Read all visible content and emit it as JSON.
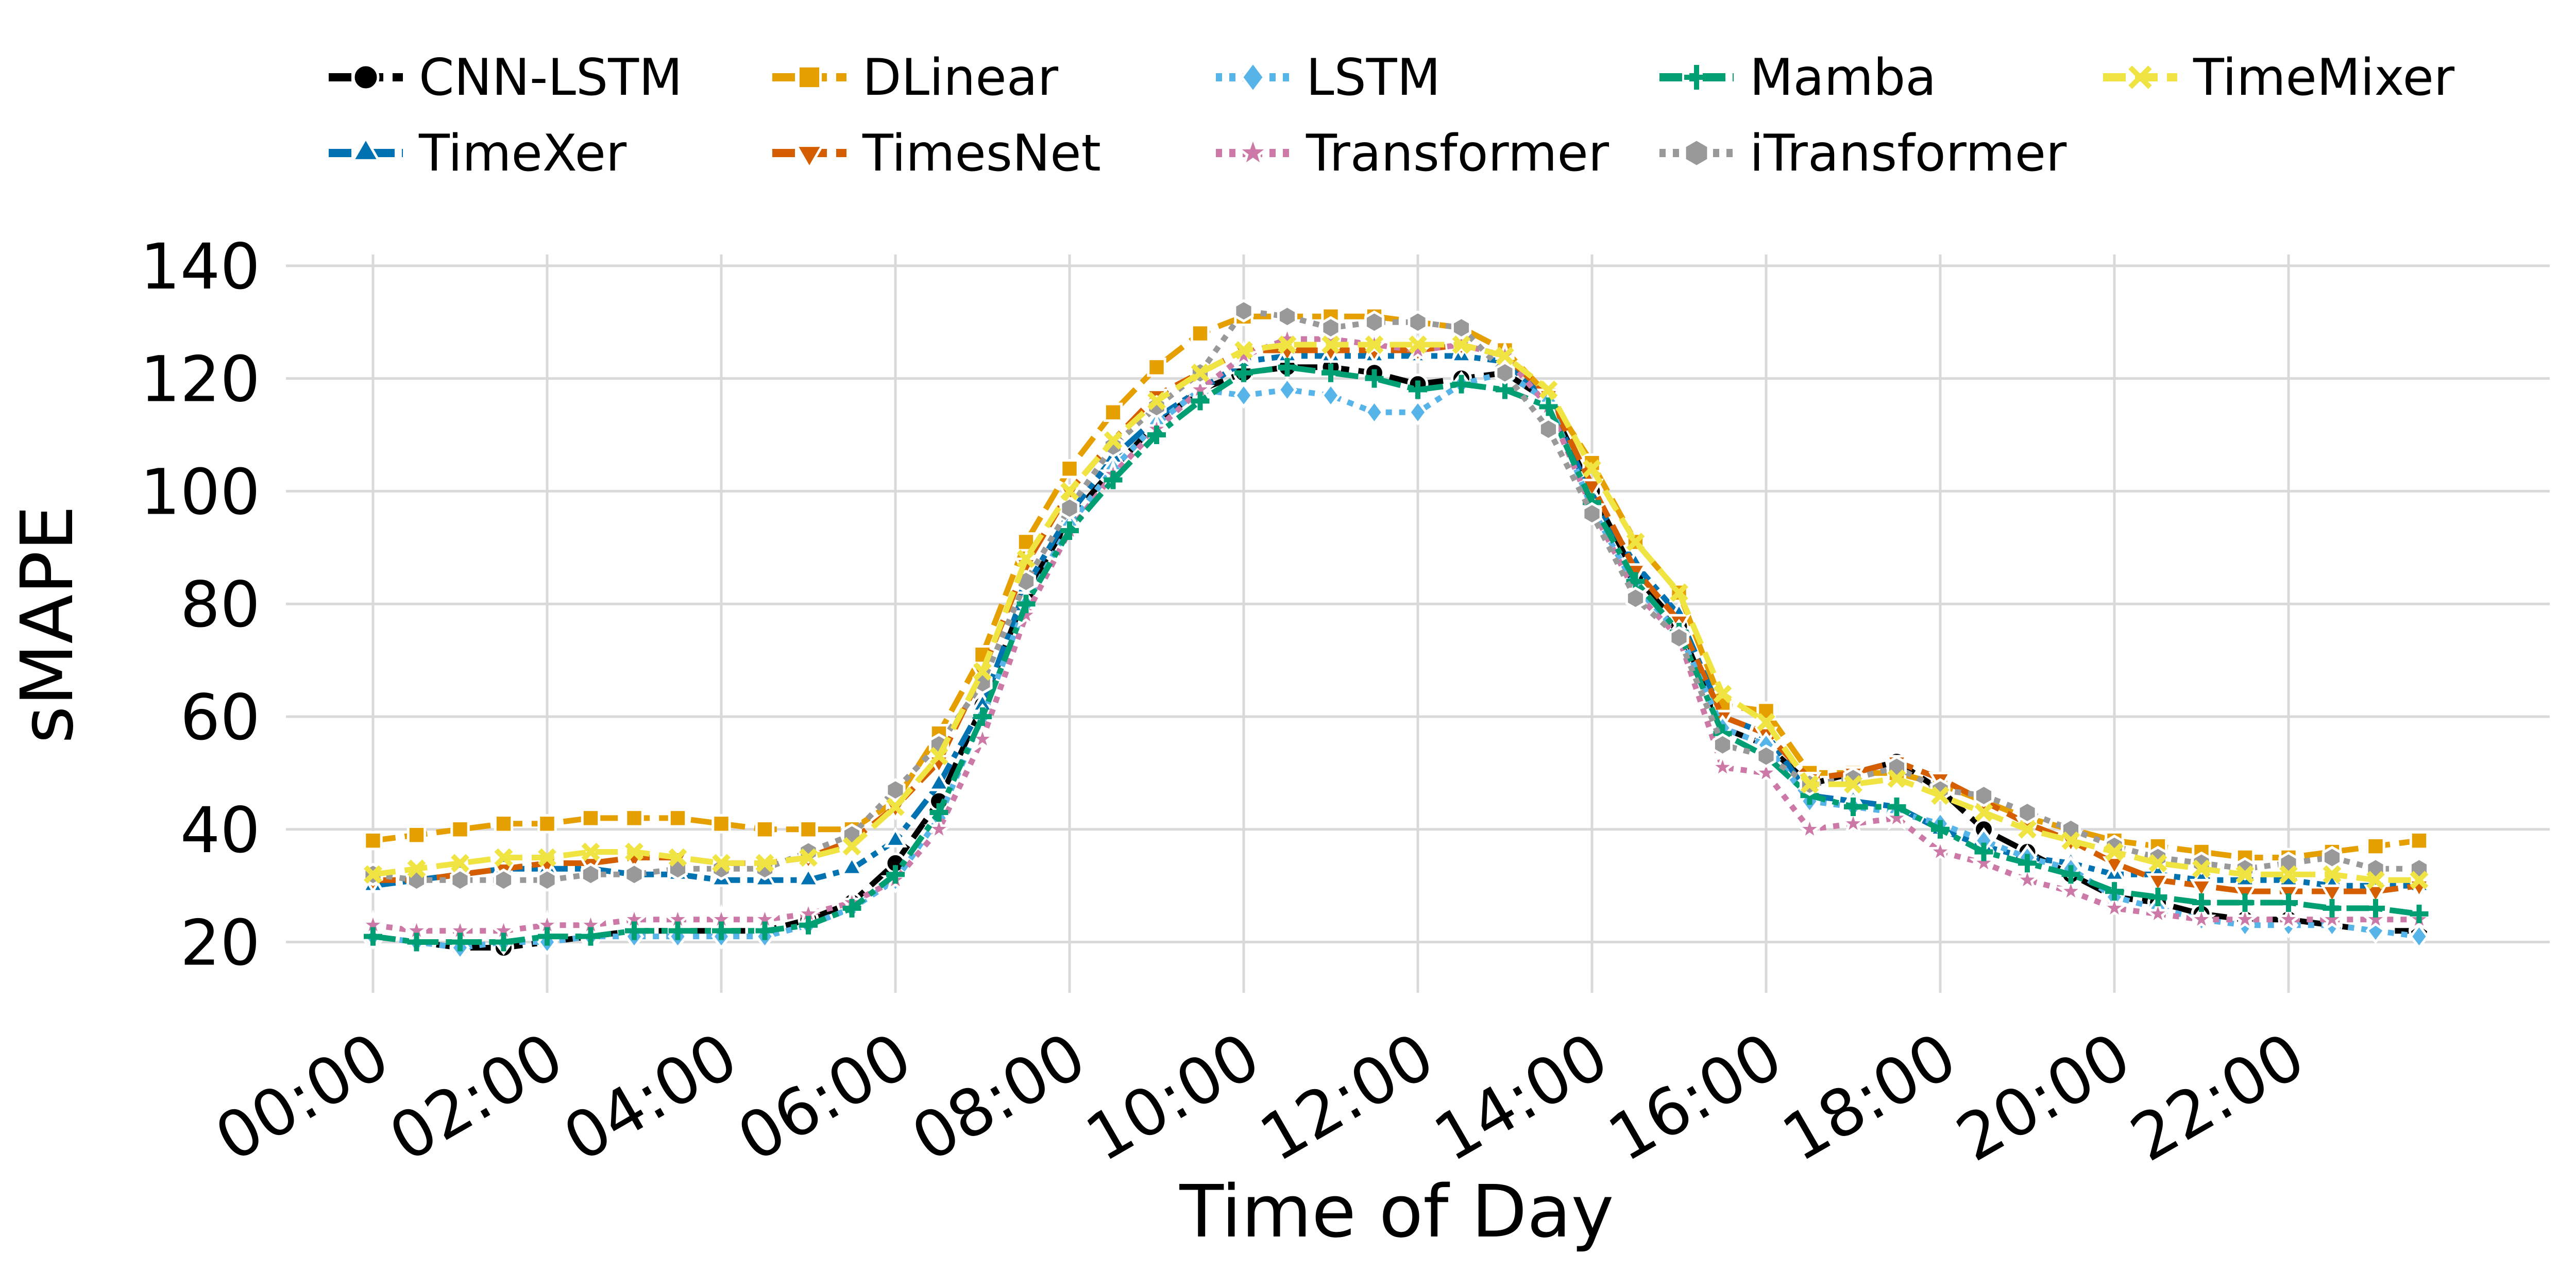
{
  "chart_data": {
    "type": "line",
    "xlabel": "Time of Day",
    "ylabel": "sMAPE",
    "x": [
      0,
      0.5,
      1,
      1.5,
      2,
      2.5,
      3,
      3.5,
      4,
      4.5,
      5,
      5.5,
      6,
      6.5,
      7,
      7.5,
      8,
      8.5,
      9,
      9.5,
      10,
      10.5,
      11,
      11.5,
      12,
      12.5,
      13,
      13.5,
      14,
      14.5,
      15,
      15.5,
      16,
      16.5,
      17,
      17.5,
      18,
      18.5,
      19,
      19.5,
      20,
      20.5,
      21,
      21.5,
      22,
      22.5,
      23,
      23.5
    ],
    "xlim": [
      -1,
      25
    ],
    "xticks": [
      {
        "value": 0,
        "label": "00:00"
      },
      {
        "value": 2,
        "label": "02:00"
      },
      {
        "value": 4,
        "label": "04:00"
      },
      {
        "value": 6,
        "label": "06:00"
      },
      {
        "value": 8,
        "label": "08:00"
      },
      {
        "value": 10,
        "label": "10:00"
      },
      {
        "value": 12,
        "label": "12:00"
      },
      {
        "value": 14,
        "label": "14:00"
      },
      {
        "value": 16,
        "label": "16:00"
      },
      {
        "value": 18,
        "label": "18:00"
      },
      {
        "value": 20,
        "label": "20:00"
      },
      {
        "value": 22,
        "label": "22:00"
      }
    ],
    "ylim": [
      11,
      142
    ],
    "yticks": [
      20,
      40,
      60,
      80,
      100,
      120,
      140
    ],
    "grid": true,
    "legend": "top",
    "series": [
      {
        "name": "CNN-LSTM",
        "color": "#000000",
        "marker": "circle",
        "linestyle": "dashed",
        "values": [
          21,
          20,
          19,
          19,
          20,
          21,
          22,
          22,
          22,
          22,
          24,
          27,
          34,
          45,
          62,
          82,
          95,
          104,
          112,
          118,
          121,
          122,
          122,
          121,
          119,
          120,
          121,
          116,
          100,
          85,
          76,
          58,
          55,
          48,
          50,
          52,
          47,
          40,
          36,
          32,
          28,
          27,
          25,
          24,
          24,
          23,
          22,
          22
        ]
      },
      {
        "name": "TimeXer",
        "color": "#0072b2",
        "marker": "triangle-up",
        "linestyle": "dashdot",
        "values": [
          30,
          31,
          32,
          33,
          33,
          33,
          32,
          32,
          31,
          31,
          31,
          33,
          38,
          48,
          62,
          83,
          96,
          106,
          113,
          118,
          123,
          124,
          124,
          124,
          124,
          124,
          123,
          116,
          99,
          87,
          78,
          60,
          57,
          46,
          45,
          44,
          40,
          37,
          35,
          34,
          32,
          32,
          31,
          31,
          31,
          30,
          30,
          30
        ]
      },
      {
        "name": "DLinear",
        "color": "#e69f00",
        "marker": "square",
        "linestyle": "dashed",
        "values": [
          38,
          39,
          40,
          41,
          41,
          42,
          42,
          42,
          41,
          40,
          40,
          40,
          45,
          57,
          71,
          91,
          104,
          114,
          122,
          128,
          131,
          131,
          131,
          131,
          130,
          129,
          125,
          117,
          105,
          91,
          82,
          62,
          61,
          50,
          50,
          50,
          48,
          45,
          42,
          40,
          38,
          37,
          36,
          35,
          35,
          36,
          37,
          38
        ]
      },
      {
        "name": "TimesNet",
        "color": "#d55e00",
        "marker": "triangle-down",
        "linestyle": "dashed",
        "values": [
          31,
          31,
          32,
          33,
          34,
          34,
          35,
          35,
          34,
          34,
          35,
          38,
          44,
          52,
          68,
          87,
          100,
          109,
          117,
          121,
          125,
          125,
          125,
          125,
          125,
          126,
          124,
          117,
          101,
          86,
          77,
          60,
          57,
          49,
          50,
          52,
          49,
          45,
          41,
          38,
          34,
          31,
          30,
          29,
          29,
          29,
          29,
          30
        ]
      },
      {
        "name": "LSTM",
        "color": "#56b4e9",
        "marker": "diamond",
        "linestyle": "dotted",
        "values": [
          21,
          20,
          19,
          20,
          20,
          21,
          21,
          21,
          21,
          21,
          23,
          26,
          31,
          42,
          60,
          80,
          94,
          104,
          112,
          118,
          117,
          118,
          117,
          114,
          114,
          119,
          121,
          116,
          97,
          83,
          75,
          58,
          55,
          45,
          44,
          43,
          41,
          38,
          35,
          33,
          28,
          26,
          24,
          23,
          23,
          23,
          22,
          21
        ]
      },
      {
        "name": "Transformer",
        "color": "#cc79a7",
        "marker": "star",
        "linestyle": "dotted",
        "values": [
          23,
          22,
          22,
          22,
          23,
          23,
          24,
          24,
          24,
          24,
          25,
          27,
          31,
          40,
          56,
          78,
          93,
          103,
          111,
          118,
          124,
          127,
          127,
          126,
          125,
          126,
          124,
          115,
          97,
          82,
          74,
          51,
          50,
          40,
          41,
          42,
          36,
          34,
          31,
          29,
          26,
          25,
          24,
          24,
          24,
          24,
          24,
          24
        ]
      },
      {
        "name": "Mamba",
        "color": "#009e73",
        "marker": "plus",
        "linestyle": "dashdot",
        "values": [
          21,
          20,
          20,
          20,
          21,
          21,
          22,
          22,
          22,
          22,
          23,
          26,
          32,
          43,
          60,
          80,
          93,
          102,
          110,
          116,
          121,
          122,
          121,
          120,
          118,
          119,
          118,
          115,
          98,
          84,
          75,
          57,
          53,
          46,
          44,
          44,
          40,
          36,
          34,
          32,
          29,
          28,
          27,
          27,
          27,
          26,
          26,
          25
        ]
      },
      {
        "name": "iTransformer",
        "color": "#999999",
        "marker": "hexagon",
        "linestyle": "dotted",
        "values": [
          32,
          31,
          31,
          31,
          31,
          32,
          32,
          33,
          33,
          33,
          36,
          39,
          47,
          55,
          66,
          84,
          97,
          108,
          115,
          121,
          132,
          131,
          129,
          130,
          130,
          129,
          121,
          111,
          96,
          81,
          74,
          55,
          53,
          48,
          49,
          51,
          47,
          46,
          43,
          40,
          37,
          35,
          34,
          33,
          34,
          35,
          33,
          33
        ]
      },
      {
        "name": "TimeMixer",
        "color": "#f0e442",
        "marker": "x",
        "linestyle": "dashed",
        "values": [
          32,
          33,
          34,
          35,
          35,
          36,
          36,
          35,
          34,
          34,
          35,
          37,
          44,
          53,
          68,
          88,
          100,
          109,
          116,
          121,
          125,
          126,
          126,
          126,
          126,
          126,
          124,
          118,
          104,
          91,
          82,
          64,
          59,
          48,
          48,
          49,
          46,
          43,
          40,
          38,
          36,
          34,
          33,
          32,
          32,
          32,
          31,
          31
        ]
      }
    ]
  }
}
